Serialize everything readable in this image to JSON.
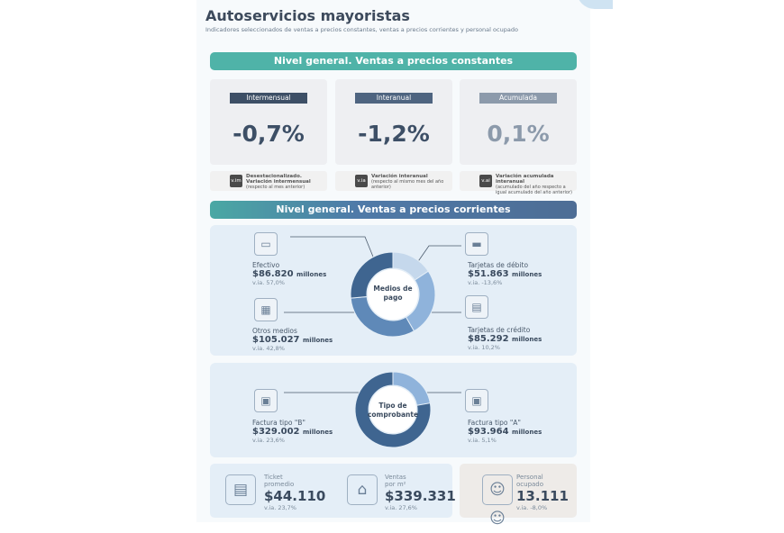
{
  "header": {
    "title": "Autoservicios mayoristas",
    "subtitle": "Indicadores seleccionados de ventas a precios constantes, ventas a precios corrientes y personal ocupado"
  },
  "section1": {
    "title": "Nivel general. Ventas a precios constantes",
    "cards": [
      {
        "label": "Intermensual",
        "value": "-0,7%",
        "color": "#3d4f66"
      },
      {
        "label": "Interanual",
        "value": "-1,2%",
        "color": "#4e6480"
      },
      {
        "label": "Acumulada",
        "value": "0,1%",
        "color": "#8c9aab"
      }
    ],
    "legend": [
      {
        "badge": "v.im",
        "title": "Desestacionalizado. Variación intermensual",
        "note": "(respecto al mes anterior)"
      },
      {
        "badge": "v.ia",
        "title": "Variación interanual",
        "note": "(respecto al mismo mes del año anterior)"
      },
      {
        "badge": "v.ai",
        "title": "Variación acumulada interanual",
        "note": "(acumulado del año respecto a igual acumulado del año anterior)"
      }
    ]
  },
  "section2": {
    "title": "Nivel general. Ventas a precios corrientes",
    "medios": {
      "center": "Medios de pago",
      "items": [
        {
          "name": "Tarjetas de débito",
          "amount": "$51.863",
          "unit": "millones",
          "via": "v.ia. -13,6%",
          "value": 51.863,
          "color": "#c5d8ec",
          "icon": "debit-card-icon"
        },
        {
          "name": "Tarjetas de crédito",
          "amount": "$85.292",
          "unit": "millones",
          "via": "v.ia. 10,2%",
          "value": 85.292,
          "color": "#8fb3db",
          "icon": "credit-card-icon"
        },
        {
          "name": "Otros medios",
          "amount": "$105.027",
          "unit": "millones",
          "via": "v.ia. 42,8%",
          "value": 105.027,
          "color": "#5f89b8",
          "icon": "qr-code-icon"
        },
        {
          "name": "Efectivo",
          "amount": "$86.820",
          "unit": "millones",
          "via": "v.ia. 57,0%",
          "value": 86.82,
          "color": "#3f6590",
          "icon": "cash-icon"
        }
      ]
    },
    "comprobante": {
      "center": "Tipo de comprobante",
      "items": [
        {
          "name": "Factura tipo \"A\"",
          "amount": "$93.964",
          "unit": "millones",
          "via": "v.ia. 5,1%",
          "value": 93.964,
          "color": "#8fb3db",
          "icon": "invoice-icon"
        },
        {
          "name": "Factura tipo \"B\"",
          "amount": "$329.002",
          "unit": "millones",
          "via": "v.ia. 23,6%",
          "value": 329.002,
          "color": "#3f6590",
          "icon": "invoice-icon"
        }
      ]
    }
  },
  "bottom": {
    "ticket": {
      "label1": "Ticket",
      "label2": "promedio",
      "value": "$44.110",
      "via": "v.ia. 23,7%"
    },
    "ventas": {
      "label1": "Ventas",
      "label2": "por m²",
      "value": "$339.331",
      "via": "v.ia. 27,6%"
    },
    "personal": {
      "label1": "Personal",
      "label2": "ocupado",
      "value": "13.111",
      "via": "v.ia. -8,0%"
    }
  }
}
